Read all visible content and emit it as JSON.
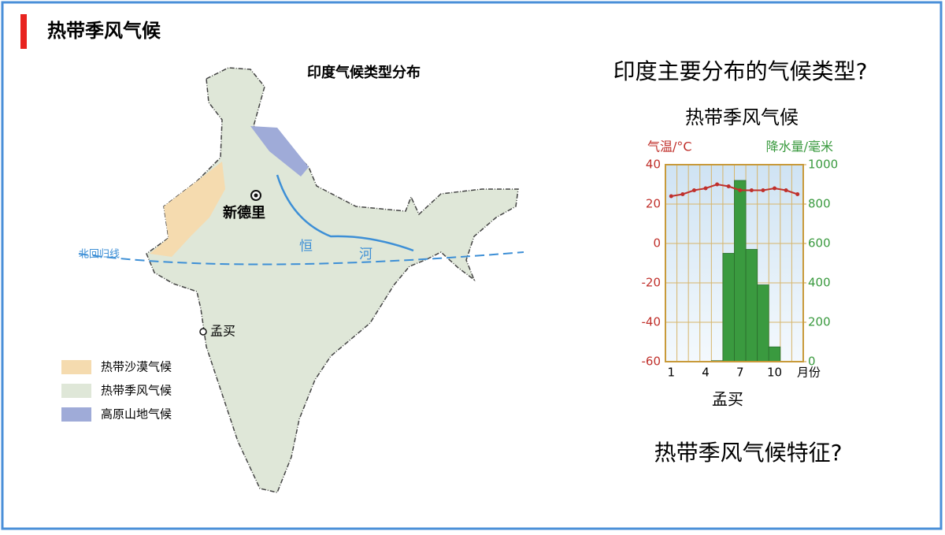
{
  "header": {
    "title": "热带季风气候"
  },
  "questions": [
    "印度主要分布的气候类型?",
    "热带季风气候特征?"
  ],
  "map": {
    "title": "印度气候类型分布",
    "labels": {
      "capital": "新德里",
      "city": "孟买",
      "river_1": "恒",
      "river_2": "河",
      "tropic": "北回归线"
    },
    "legend": [
      {
        "label": "热带沙漠气候",
        "color": "#f5dbaf"
      },
      {
        "label": "热带季风气候",
        "color": "#dfe7d8"
      },
      {
        "label": "高原山地气候",
        "color": "#9fabd8"
      }
    ]
  },
  "chart_data": {
    "type": "climograph",
    "title": "热带季风气候",
    "station": "孟买",
    "ylabel": "气温/°C",
    "y2label": "降水量/毫米",
    "xlabel": "月份",
    "categories": [
      "1",
      null,
      null,
      "4",
      null,
      null,
      "7",
      null,
      null,
      "10",
      null,
      null
    ],
    "series": [
      {
        "type": "bar",
        "axis": "y2",
        "color": "#3a9a3f",
        "values": [
          0,
          0,
          0,
          0,
          5,
          550,
          920,
          570,
          390,
          75,
          0,
          0
        ]
      },
      {
        "type": "line",
        "axis": "y",
        "color": "#c0302b",
        "values": [
          24,
          25,
          27,
          28,
          30,
          29,
          27,
          27,
          27,
          28,
          27,
          25
        ]
      }
    ],
    "ylim": [
      -60,
      40
    ],
    "yticks": [
      -60,
      -40,
      -20,
      0,
      20,
      40
    ],
    "y2lim": [
      0,
      1000
    ],
    "y2ticks": [
      0,
      200,
      400,
      600,
      800,
      1000
    ],
    "grid": true
  }
}
